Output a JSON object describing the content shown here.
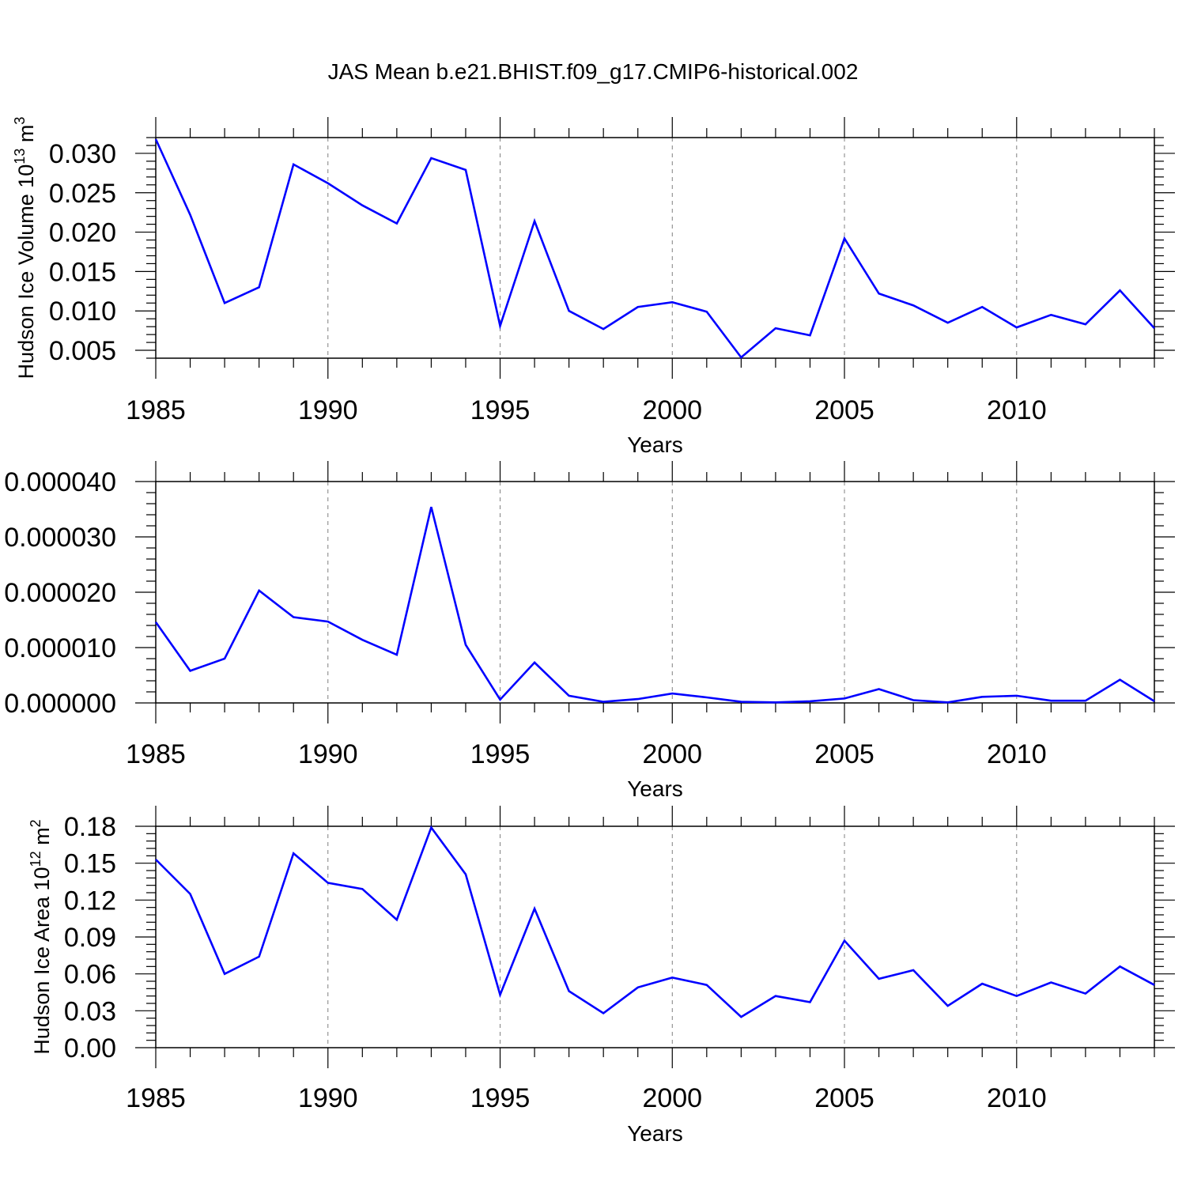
{
  "title": "JAS Mean b.e21.BHIST.f09_g17.CMIP6-historical.002",
  "colors": {
    "series": "#0000ff",
    "axis": "#000000",
    "grid": "#808080",
    "background": "#ffffff"
  },
  "chart_data": [
    {
      "type": "line",
      "xlabel": "Years",
      "ylabel": "Hudson Ice Volume 10",
      "ylabel_sup": "13",
      "ylabel_unit": " m",
      "ylabel_unit_sup": "3",
      "xlim": [
        1985,
        2014
      ],
      "ylim": [
        0.004,
        0.032
      ],
      "x_ticks": [
        "1985",
        "1990",
        "1995",
        "2000",
        "2005",
        "2010"
      ],
      "y_ticks": [
        "0.005",
        "0.010",
        "0.015",
        "0.020",
        "0.025",
        "0.030"
      ],
      "grid": "vertical dashed at major x ticks",
      "x": [
        1985,
        1986,
        1987,
        1988,
        1989,
        1990,
        1991,
        1992,
        1993,
        1994,
        1995,
        1996,
        1997,
        1998,
        1999,
        2000,
        2001,
        2002,
        2003,
        2004,
        2005,
        2006,
        2007,
        2008,
        2009,
        2010,
        2011,
        2012,
        2013,
        2014
      ],
      "series": [
        {
          "values": [
            0.0318,
            0.0222,
            0.011,
            0.013,
            0.0286,
            0.0262,
            0.0234,
            0.0211,
            0.0294,
            0.0279,
            0.0081,
            0.0214,
            0.01,
            0.0077,
            0.0105,
            0.0111,
            0.0099,
            0.0041,
            0.0078,
            0.0069,
            0.0192,
            0.0122,
            0.0107,
            0.0085,
            0.0105,
            0.0079,
            0.0095,
            0.0083,
            0.0126,
            0.0078
          ]
        }
      ]
    },
    {
      "type": "line",
      "xlabel": "Years",
      "ylabel": "",
      "xlim": [
        1985,
        2014
      ],
      "ylim": [
        0,
        4e-05
      ],
      "x_ticks": [
        "1985",
        "1990",
        "1995",
        "2000",
        "2005",
        "2010"
      ],
      "y_ticks": [
        "0.000000",
        "0.000010",
        "0.000020",
        "0.000030",
        "0.000040"
      ],
      "grid": "vertical dashed at major x ticks",
      "x": [
        1985,
        1986,
        1987,
        1988,
        1989,
        1990,
        1991,
        1992,
        1993,
        1994,
        1995,
        1996,
        1997,
        1998,
        1999,
        2000,
        2001,
        2002,
        2003,
        2004,
        2005,
        2006,
        2007,
        2008,
        2009,
        2010,
        2011,
        2012,
        2013,
        2014
      ],
      "series": [
        {
          "values": [
            1.46e-05,
            5.8e-06,
            8e-06,
            2.03e-05,
            1.55e-05,
            1.47e-05,
            1.14e-05,
            8.7e-06,
            3.54e-05,
            1.05e-05,
            6e-07,
            7.3e-06,
            1.3e-06,
            2e-07,
            7e-07,
            1.7e-06,
            1e-06,
            2e-07,
            1e-07,
            3e-07,
            8e-07,
            2.5e-06,
            5e-07,
            1e-07,
            1.1e-06,
            1.3e-06,
            4e-07,
            4e-07,
            4.2e-06,
            3e-07
          ]
        }
      ]
    },
    {
      "type": "line",
      "xlabel": "Years",
      "ylabel": "Hudson Ice Area 10",
      "ylabel_sup": "12",
      "ylabel_unit": " m",
      "ylabel_unit_sup": "2",
      "xlim": [
        1985,
        2014
      ],
      "ylim": [
        0,
        0.18
      ],
      "x_ticks": [
        "1985",
        "1990",
        "1995",
        "2000",
        "2005",
        "2010"
      ],
      "y_ticks": [
        "0.00",
        "0.03",
        "0.06",
        "0.09",
        "0.12",
        "0.15",
        "0.18"
      ],
      "grid": "vertical dashed at major x ticks",
      "x": [
        1985,
        1986,
        1987,
        1988,
        1989,
        1990,
        1991,
        1992,
        1993,
        1994,
        1995,
        1996,
        1997,
        1998,
        1999,
        2000,
        2001,
        2002,
        2003,
        2004,
        2005,
        2006,
        2007,
        2008,
        2009,
        2010,
        2011,
        2012,
        2013,
        2014
      ],
      "series": [
        {
          "values": [
            0.153,
            0.125,
            0.06,
            0.074,
            0.158,
            0.134,
            0.129,
            0.104,
            0.179,
            0.141,
            0.043,
            0.113,
            0.046,
            0.028,
            0.049,
            0.057,
            0.051,
            0.025,
            0.042,
            0.037,
            0.087,
            0.056,
            0.063,
            0.034,
            0.052,
            0.042,
            0.053,
            0.044,
            0.066,
            0.051
          ]
        }
      ]
    }
  ]
}
